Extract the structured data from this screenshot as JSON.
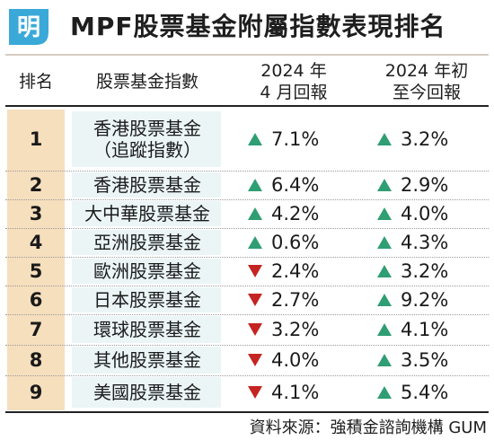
{
  "header": {
    "logo_text": "明",
    "title": "MPF股票基金附屬指數表現排名"
  },
  "columns": {
    "rank": "排名",
    "name": "股票基金指數",
    "april_line1": "2024 年",
    "april_line2": "4 月回報",
    "ytd_line1": "2024 年初",
    "ytd_line2": "至今回報"
  },
  "rows": [
    {
      "rank": "1",
      "name": "香港股票基金",
      "name_line2": "（追蹤指數）",
      "april": "7.1%",
      "april_dir": "up",
      "ytd": "3.2%",
      "ytd_dir": "up"
    },
    {
      "rank": "2",
      "name": "香港股票基金",
      "name_line2": "",
      "april": "6.4%",
      "april_dir": "up",
      "ytd": "2.9%",
      "ytd_dir": "up"
    },
    {
      "rank": "3",
      "name": "大中華股票基金",
      "name_line2": "",
      "april": "4.2%",
      "april_dir": "up",
      "ytd": "4.0%",
      "ytd_dir": "up"
    },
    {
      "rank": "4",
      "name": "亞洲股票基金",
      "name_line2": "",
      "april": "0.6%",
      "april_dir": "up",
      "ytd": "4.3%",
      "ytd_dir": "up"
    },
    {
      "rank": "5",
      "name": "歐洲股票基金",
      "name_line2": "",
      "april": "2.4%",
      "april_dir": "down",
      "ytd": "3.2%",
      "ytd_dir": "up"
    },
    {
      "rank": "6",
      "name": "日本股票基金",
      "name_line2": "",
      "april": "2.7%",
      "april_dir": "down",
      "ytd": "9.2%",
      "ytd_dir": "up"
    },
    {
      "rank": "7",
      "name": "環球股票基金",
      "name_line2": "",
      "april": "3.2%",
      "april_dir": "down",
      "ytd": "4.1%",
      "ytd_dir": "up"
    },
    {
      "rank": "8",
      "name": "其他股票基金",
      "name_line2": "",
      "april": "4.0%",
      "april_dir": "down",
      "ytd": "3.5%",
      "ytd_dir": "up"
    },
    {
      "rank": "9",
      "name": "美國股票基金",
      "name_line2": "",
      "april": "4.1%",
      "april_dir": "down",
      "ytd": "5.4%",
      "ytd_dir": "up"
    }
  ],
  "source": "資料來源：強積金諮詢機構 GUM",
  "colors": {
    "up": "#2f9e73",
    "down": "#c42422",
    "rank_bg": "#f6dfbd",
    "name_bg": "#ebf5f6",
    "logo": "#3aa9d8"
  }
}
